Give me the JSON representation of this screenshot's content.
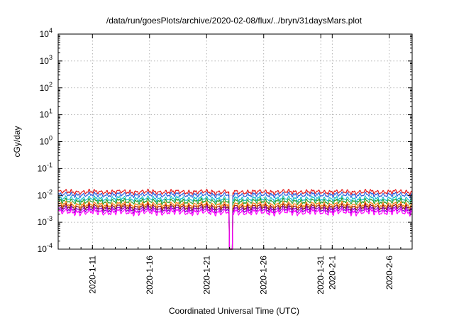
{
  "chart_data": {
    "type": "line",
    "title": "/data/run/goesPlots/archive/2020-02-08/flux/../bryn/31daysMars.plot",
    "xlabel": "Coordinated Universal Time (UTC)",
    "ylabel": "cGy/day",
    "yscale": "log",
    "ylim": [
      0.0001,
      10000
    ],
    "yticks": [
      {
        "base": "10",
        "exp": "-4",
        "value": 0.0001
      },
      {
        "base": "10",
        "exp": "-3",
        "value": 0.001
      },
      {
        "base": "10",
        "exp": "-2",
        "value": 0.01
      },
      {
        "base": "10",
        "exp": "-1",
        "value": 0.1
      },
      {
        "base": "10",
        "exp": "0",
        "value": 1
      },
      {
        "base": "10",
        "exp": "1",
        "value": 10
      },
      {
        "base": "10",
        "exp": "2",
        "value": 100
      },
      {
        "base": "10",
        "exp": "3",
        "value": 1000
      },
      {
        "base": "10",
        "exp": "4",
        "value": 10000
      }
    ],
    "xlim": [
      "2020-01-08",
      "2020-02-08"
    ],
    "xticks": [
      "2020-1-11",
      "2020-1-16",
      "2020-1-21",
      "2020-1-26",
      "2020-1-31",
      "2020-2-1",
      "2020-2-6"
    ],
    "xtick_dates": [
      "2020-01-11",
      "2020-01-16",
      "2020-01-21",
      "2020-01-26",
      "2020-01-31",
      "2020-02-01",
      "2020-02-06"
    ],
    "grid": true,
    "legend": "none",
    "dropout": {
      "start": "2020-01-23",
      "end": "2020-01-23T06:00",
      "value": 0.0001
    },
    "series": [
      {
        "color": "#e41a1c",
        "level": 0.0135
      },
      {
        "color": "#2b5fe0",
        "level": 0.0105
      },
      {
        "color": "#17becf",
        "level": 0.0075
      },
      {
        "color": "#2ca02c",
        "level": 0.006
      },
      {
        "color": "#ff7f0e",
        "level": 0.0045
      },
      {
        "color": "#8b1a1a",
        "level": 0.0037
      },
      {
        "color": "#9400d3",
        "level": 0.003
      },
      {
        "color": "#ff00ff",
        "level": 0.0024
      }
    ]
  }
}
